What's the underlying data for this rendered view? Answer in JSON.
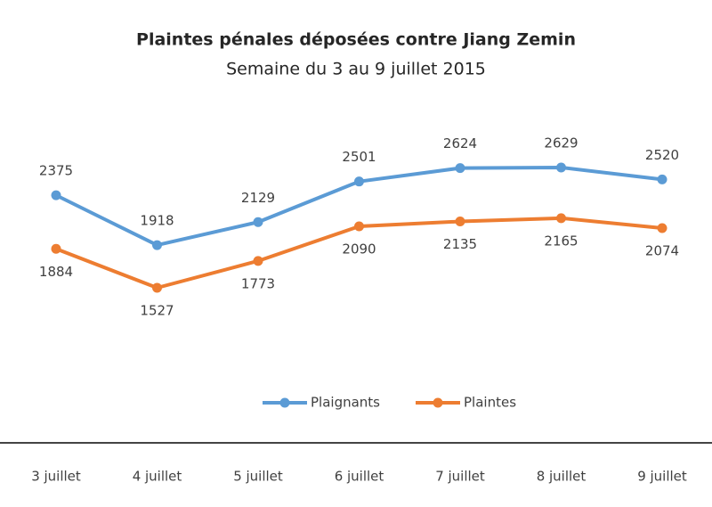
{
  "chart_data": {
    "type": "line",
    "title": "Plaintes pénales déposées contre Jiang Zemin",
    "subtitle": "Semaine du 3 au 9 juillet 2015",
    "categories": [
      "3 juillet",
      "4 juillet",
      "5 juillet",
      "6 juillet",
      "7 juillet",
      "8 juillet",
      "9 juillet"
    ],
    "series": [
      {
        "name": "Plaignants",
        "color": "#5b9bd5",
        "values": [
          2375,
          1918,
          2129,
          2501,
          2624,
          2629,
          2520
        ]
      },
      {
        "name": "Plaintes",
        "color": "#ed7d31",
        "values": [
          1884,
          1527,
          1773,
          2090,
          2135,
          2165,
          2074
        ]
      }
    ],
    "legend": "bottom"
  }
}
